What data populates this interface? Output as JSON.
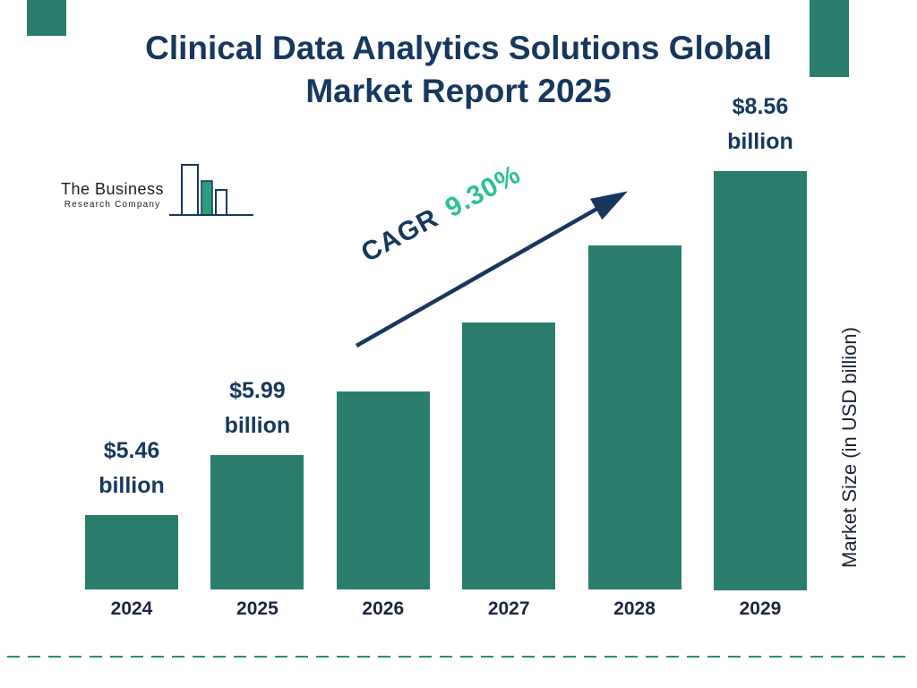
{
  "title": {
    "line1": "Clinical Data Analytics Solutions Global",
    "line2": "Market Report 2025"
  },
  "logo": {
    "line1": "The Business",
    "line2": "Research Company"
  },
  "cagr": {
    "prefix": "CAGR",
    "value": "9.30%"
  },
  "chart_data": {
    "type": "bar",
    "title": "Clinical Data Analytics Solutions Global Market Report 2025",
    "categories": [
      "2024",
      "2025",
      "2026",
      "2027",
      "2028",
      "2029"
    ],
    "values": [
      5.46,
      5.99,
      6.55,
      7.16,
      7.83,
      8.56
    ],
    "bar_labels": [
      {
        "line1": "$5.46",
        "line2": "billion"
      },
      {
        "line1": "$5.99",
        "line2": "billion"
      },
      null,
      null,
      null,
      {
        "line1": "$8.56",
        "line2": "billion"
      }
    ],
    "cagr": "9.30%",
    "xlabel": "",
    "ylabel": "Market Size (in USD billion)",
    "ylim": [
      4.8,
      8.8
    ],
    "grid": false,
    "legend": false,
    "colors": {
      "bar": "#2a7d6d",
      "title": "#17375e",
      "accent_green": "#2ec08e",
      "dashed_line": "#2a8d7a"
    }
  }
}
